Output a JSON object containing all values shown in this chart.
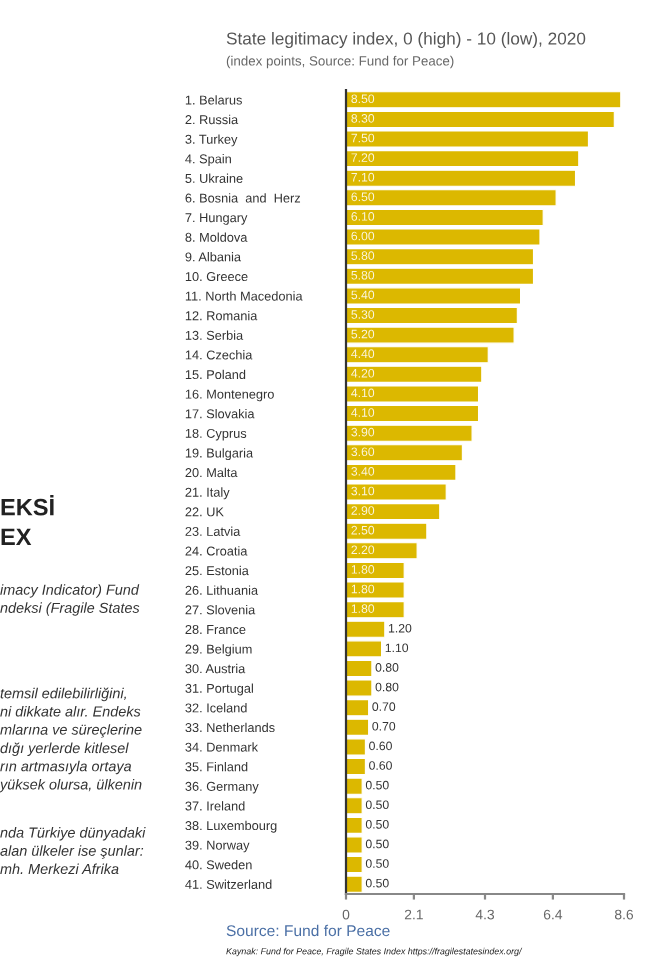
{
  "chart_data": {
    "type": "bar",
    "orientation": "horizontal",
    "title": "State legitimacy index, 0 (high) - 10 (low), 2020",
    "subtitle": "(index points, Source: Fund for Peace)",
    "categories": [
      "1. Belarus",
      "2. Russia",
      "3. Turkey",
      "4. Spain",
      "5. Ukraine",
      "6. Bosnia  and  Herz",
      "7. Hungary",
      "8. Moldova",
      "9. Albania",
      "10. Greece",
      "11. North Macedonia",
      "12. Romania",
      "13. Serbia",
      "14. Czechia",
      "15. Poland",
      "16. Montenegro",
      "17. Slovakia",
      "18. Cyprus",
      "19. Bulgaria",
      "20. Malta",
      "21. Italy",
      "22. UK",
      "23. Latvia",
      "24. Croatia",
      "25. Estonia",
      "26. Lithuania",
      "27. Slovenia",
      "28. France",
      "29. Belgium",
      "30. Austria",
      "31. Portugal",
      "32. Iceland",
      "33. Netherlands",
      "34. Denmark",
      "35. Finland",
      "36. Germany",
      "37. Ireland",
      "38. Luxembourg",
      "39. Norway",
      "40. Sweden",
      "41. Switzerland"
    ],
    "values": [
      8.5,
      8.3,
      7.5,
      7.2,
      7.1,
      6.5,
      6.1,
      6.0,
      5.8,
      5.8,
      5.4,
      5.3,
      5.2,
      4.4,
      4.2,
      4.1,
      4.1,
      3.9,
      3.6,
      3.4,
      3.1,
      2.9,
      2.5,
      2.2,
      1.8,
      1.8,
      1.8,
      1.2,
      1.1,
      0.8,
      0.8,
      0.7,
      0.7,
      0.6,
      0.6,
      0.5,
      0.5,
      0.5,
      0.5,
      0.5,
      0.5
    ],
    "value_labels": [
      "8.50",
      "8.30",
      "7.50",
      "7.20",
      "7.10",
      "6.50",
      "6.10",
      "6.00",
      "5.80",
      "5.80",
      "5.40",
      "5.30",
      "5.20",
      "4.40",
      "4.20",
      "4.10",
      "4.10",
      "3.90",
      "3.60",
      "3.40",
      "3.10",
      "2.90",
      "2.50",
      "2.20",
      "1.80",
      "1.80",
      "1.80",
      "1.20",
      "1.10",
      "0.80",
      "0.80",
      "0.70",
      "0.70",
      "0.60",
      "0.60",
      "0.50",
      "0.50",
      "0.50",
      "0.50",
      "0.50",
      "0.50"
    ],
    "color": "#dcb800",
    "xlim": [
      0,
      8.6
    ],
    "xticks": [
      0,
      2.1,
      4.3,
      6.4,
      8.6
    ],
    "grid": false,
    "legend": false,
    "annotations": [
      "Source: Fund for Peace",
      "Kaynak: Fund for Peace, Fragile States Index https://fragilestatesindex.org/",
      "EKSİ\nEX",
      "imacy Indicator) Fund\nndeksi (Fragile States",
      "temsil edilebilirliğini,\nni dikkate alır. Endeks\nmlarına ve süreçlerine\ndığı yerlerde kitlesel\nrın artmasıyla ortaya\nyüksek olursa, ülkenin",
      "nda Türkiye dünyadaki\nalan ülkeler ise şunlar:\nmh. Merkezi Afrika"
    ]
  }
}
